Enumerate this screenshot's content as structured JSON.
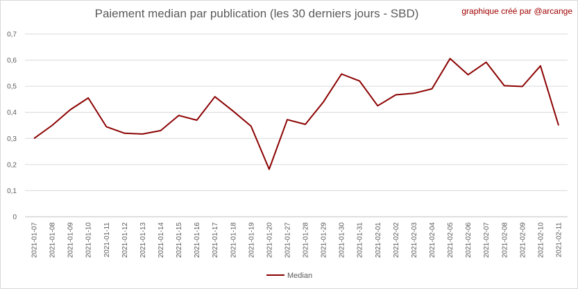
{
  "chart_data": {
    "type": "line",
    "title": "Paiement median par publication (les 30 derniers jours - SBD)",
    "credit": "graphique créé par @arcange",
    "xlabel": "",
    "ylabel": "",
    "ylim": [
      0,
      0.7
    ],
    "y_ticks": [
      "0",
      "0,1",
      "0,2",
      "0,3",
      "0,4",
      "0,5",
      "0,6",
      "0,7"
    ],
    "grid": true,
    "legend_position": "bottom",
    "categories": [
      "2021-01-07",
      "2021-01-08",
      "2021-01-09",
      "2021-01-10",
      "2021-01-11",
      "2021-01-12",
      "2021-01-13",
      "2021-01-14",
      "2021-01-15",
      "2021-01-16",
      "2021-01-17",
      "2021-01-18",
      "2021-01-19",
      "2021-01-20",
      "2021-01-27",
      "2021-01-28",
      "2021-01-29",
      "2021-01-30",
      "2021-01-31",
      "2021-02-01",
      "2021-02-02",
      "2021-02-03",
      "2021-02-04",
      "2021-02-05",
      "2021-02-06",
      "2021-02-07",
      "2021-02-08",
      "2021-02-09",
      "2021-02-10",
      "2021-02-11"
    ],
    "series": [
      {
        "name": "Median",
        "color": "#8b0000",
        "values": [
          0.3,
          0.35,
          0.41,
          0.455,
          0.345,
          0.32,
          0.317,
          0.33,
          0.388,
          0.37,
          0.46,
          0.405,
          0.347,
          0.182,
          0.372,
          0.354,
          0.44,
          0.547,
          0.52,
          0.425,
          0.467,
          0.473,
          0.49,
          0.606,
          0.544,
          0.592,
          0.502,
          0.499,
          0.578,
          0.35
        ]
      }
    ]
  }
}
